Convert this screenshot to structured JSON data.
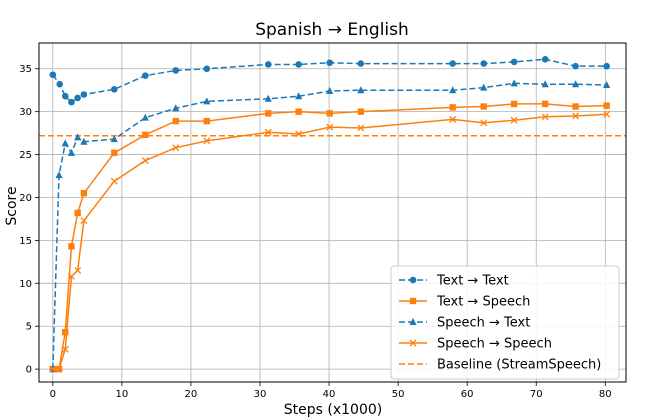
{
  "chart_data": {
    "type": "line",
    "title": "Spanish → English",
    "xlabel": "Steps (x1000)",
    "ylabel": "Score",
    "xlim": [
      -2,
      83
    ],
    "ylim": [
      -1.5,
      38
    ],
    "xticks": [
      0,
      10,
      20,
      30,
      40,
      50,
      60,
      70,
      80
    ],
    "yticks": [
      0,
      5,
      10,
      15,
      20,
      25,
      30,
      35
    ],
    "grid": true,
    "legend_position": "lower-right",
    "colors": {
      "blue": "#1f77b4",
      "orange": "#ff7f0e"
    },
    "series": [
      {
        "name": "Text → Text",
        "color": "#1f77b4",
        "line": "dashed",
        "marker": "circle",
        "points": [
          [
            0,
            34.3
          ],
          [
            1,
            33.2
          ],
          [
            1.8,
            31.8
          ],
          [
            2.7,
            31.1
          ],
          [
            3.6,
            31.6
          ],
          [
            4.5,
            32.0
          ],
          [
            8.9,
            32.6
          ],
          [
            13.4,
            34.2
          ],
          [
            17.8,
            34.8
          ],
          [
            22.3,
            35.0
          ],
          [
            31.2,
            35.5
          ],
          [
            35.6,
            35.5
          ],
          [
            40.1,
            35.7
          ],
          [
            44.6,
            35.6
          ],
          [
            57.9,
            35.6
          ],
          [
            62.4,
            35.6
          ],
          [
            66.8,
            35.8
          ],
          [
            71.3,
            36.1
          ],
          [
            75.7,
            35.3
          ],
          [
            80.2,
            35.3
          ]
        ]
      },
      {
        "name": "Text → Speech",
        "color": "#ff7f0e",
        "line": "solid",
        "marker": "square",
        "points": [
          [
            0,
            0
          ],
          [
            0.9,
            0
          ],
          [
            1.8,
            4.3
          ],
          [
            2.7,
            14.3
          ],
          [
            3.6,
            18.2
          ],
          [
            4.5,
            20.5
          ],
          [
            8.9,
            25.2
          ],
          [
            13.4,
            27.3
          ],
          [
            17.8,
            28.9
          ],
          [
            22.3,
            28.9
          ],
          [
            31.2,
            29.8
          ],
          [
            35.6,
            30.0
          ],
          [
            40.1,
            29.8
          ],
          [
            44.6,
            30.0
          ],
          [
            57.9,
            30.5
          ],
          [
            62.4,
            30.6
          ],
          [
            66.8,
            30.9
          ],
          [
            71.3,
            30.9
          ],
          [
            75.7,
            30.6
          ],
          [
            80.2,
            30.7
          ]
        ]
      },
      {
        "name": "Speech → Text",
        "color": "#1f77b4",
        "line": "dashed",
        "marker": "triangle",
        "points": [
          [
            0,
            0
          ],
          [
            0.9,
            22.6
          ],
          [
            1.8,
            26.3
          ],
          [
            2.7,
            25.2
          ],
          [
            3.6,
            27.0
          ],
          [
            4.5,
            26.5
          ],
          [
            8.9,
            26.8
          ],
          [
            13.4,
            29.3
          ],
          [
            17.8,
            30.4
          ],
          [
            22.3,
            31.2
          ],
          [
            31.2,
            31.5
          ],
          [
            35.6,
            31.8
          ],
          [
            40.1,
            32.4
          ],
          [
            44.6,
            32.5
          ],
          [
            57.9,
            32.5
          ],
          [
            62.4,
            32.8
          ],
          [
            66.8,
            33.3
          ],
          [
            71.3,
            33.2
          ],
          [
            75.7,
            33.2
          ],
          [
            80.2,
            33.1
          ]
        ]
      },
      {
        "name": "Speech → Speech",
        "color": "#ff7f0e",
        "line": "solid",
        "marker": "x",
        "points": [
          [
            0,
            0
          ],
          [
            0.9,
            0
          ],
          [
            1.8,
            2.3
          ],
          [
            2.7,
            10.8
          ],
          [
            3.6,
            11.5
          ],
          [
            4.5,
            17.3
          ],
          [
            8.9,
            21.9
          ],
          [
            13.4,
            24.3
          ],
          [
            17.8,
            25.8
          ],
          [
            22.3,
            26.6
          ],
          [
            31.2,
            27.6
          ],
          [
            35.6,
            27.4
          ],
          [
            40.1,
            28.2
          ],
          [
            44.6,
            28.1
          ],
          [
            57.9,
            29.1
          ],
          [
            62.4,
            28.7
          ],
          [
            66.8,
            29.0
          ],
          [
            71.3,
            29.4
          ],
          [
            75.7,
            29.5
          ],
          [
            80.2,
            29.7
          ]
        ]
      }
    ],
    "baseline": {
      "name": "Baseline (StreamSpeech)",
      "value": 27.2,
      "color": "#ff7f0e",
      "line": "dashed"
    }
  }
}
